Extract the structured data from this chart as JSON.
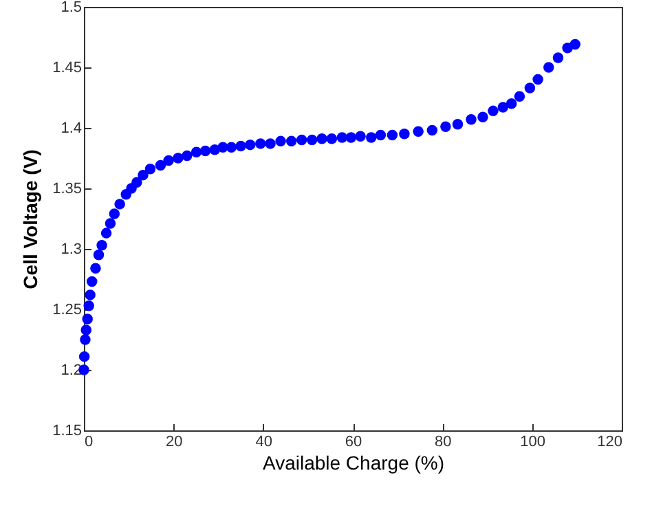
{
  "chart_data": {
    "type": "scatter",
    "xlabel": "Available Charge (%)",
    "ylabel": "Cell Voltage (V)",
    "x": [
      0,
      0.1,
      0.3,
      0.5,
      0.8,
      1.1,
      1.4,
      1.8,
      2.6,
      3.3,
      4,
      5,
      5.9,
      6.8,
      8,
      9.4,
      10.6,
      11.8,
      13.2,
      14.8,
      17.1,
      18.9,
      21,
      23,
      25.1,
      27.1,
      29.2,
      31,
      32.9,
      35,
      37.1,
      39.4,
      41.6,
      43.9,
      46.3,
      48.6,
      50.9,
      53.1,
      55.3,
      57.6,
      59.6,
      61.7,
      64.1,
      66.2,
      68.8,
      71.5,
      74.6,
      77.7,
      80.7,
      83.4,
      86.4,
      89,
      91.3,
      93.5,
      95.4,
      97.2,
      99.5,
      101.3,
      103.7,
      105.8,
      107.9,
      109.6
    ],
    "series": [
      {
        "color": "#0000ff",
        "values": [
          1.2,
          1.211,
          1.225,
          1.233,
          1.242,
          1.253,
          1.262,
          1.273,
          1.284,
          1.295,
          1.303,
          1.313,
          1.321,
          1.329,
          1.337,
          1.345,
          1.35,
          1.355,
          1.361,
          1.366,
          1.369,
          1.373,
          1.375,
          1.377,
          1.38,
          1.381,
          1.382,
          1.384,
          1.384,
          1.385,
          1.386,
          1.387,
          1.387,
          1.389,
          1.389,
          1.39,
          1.39,
          1.391,
          1.391,
          1.392,
          1.392,
          1.393,
          1.392,
          1.394,
          1.394,
          1.395,
          1.397,
          1.398,
          1.401,
          1.403,
          1.407,
          1.409,
          1.414,
          1.417,
          1.42,
          1.426,
          1.433,
          1.44,
          1.45,
          1.458,
          1.466,
          1.469
        ]
      }
    ],
    "xlim": [
      0,
      120
    ],
    "xticks": [
      0,
      20,
      40,
      60,
      80,
      100,
      120
    ],
    "ylim": [
      1.15,
      1.5
    ],
    "yticks": [
      1.15,
      1.2,
      1.25,
      1.3,
      1.35,
      1.4,
      1.45,
      1.5
    ],
    "marker": "circle",
    "grid": false
  }
}
